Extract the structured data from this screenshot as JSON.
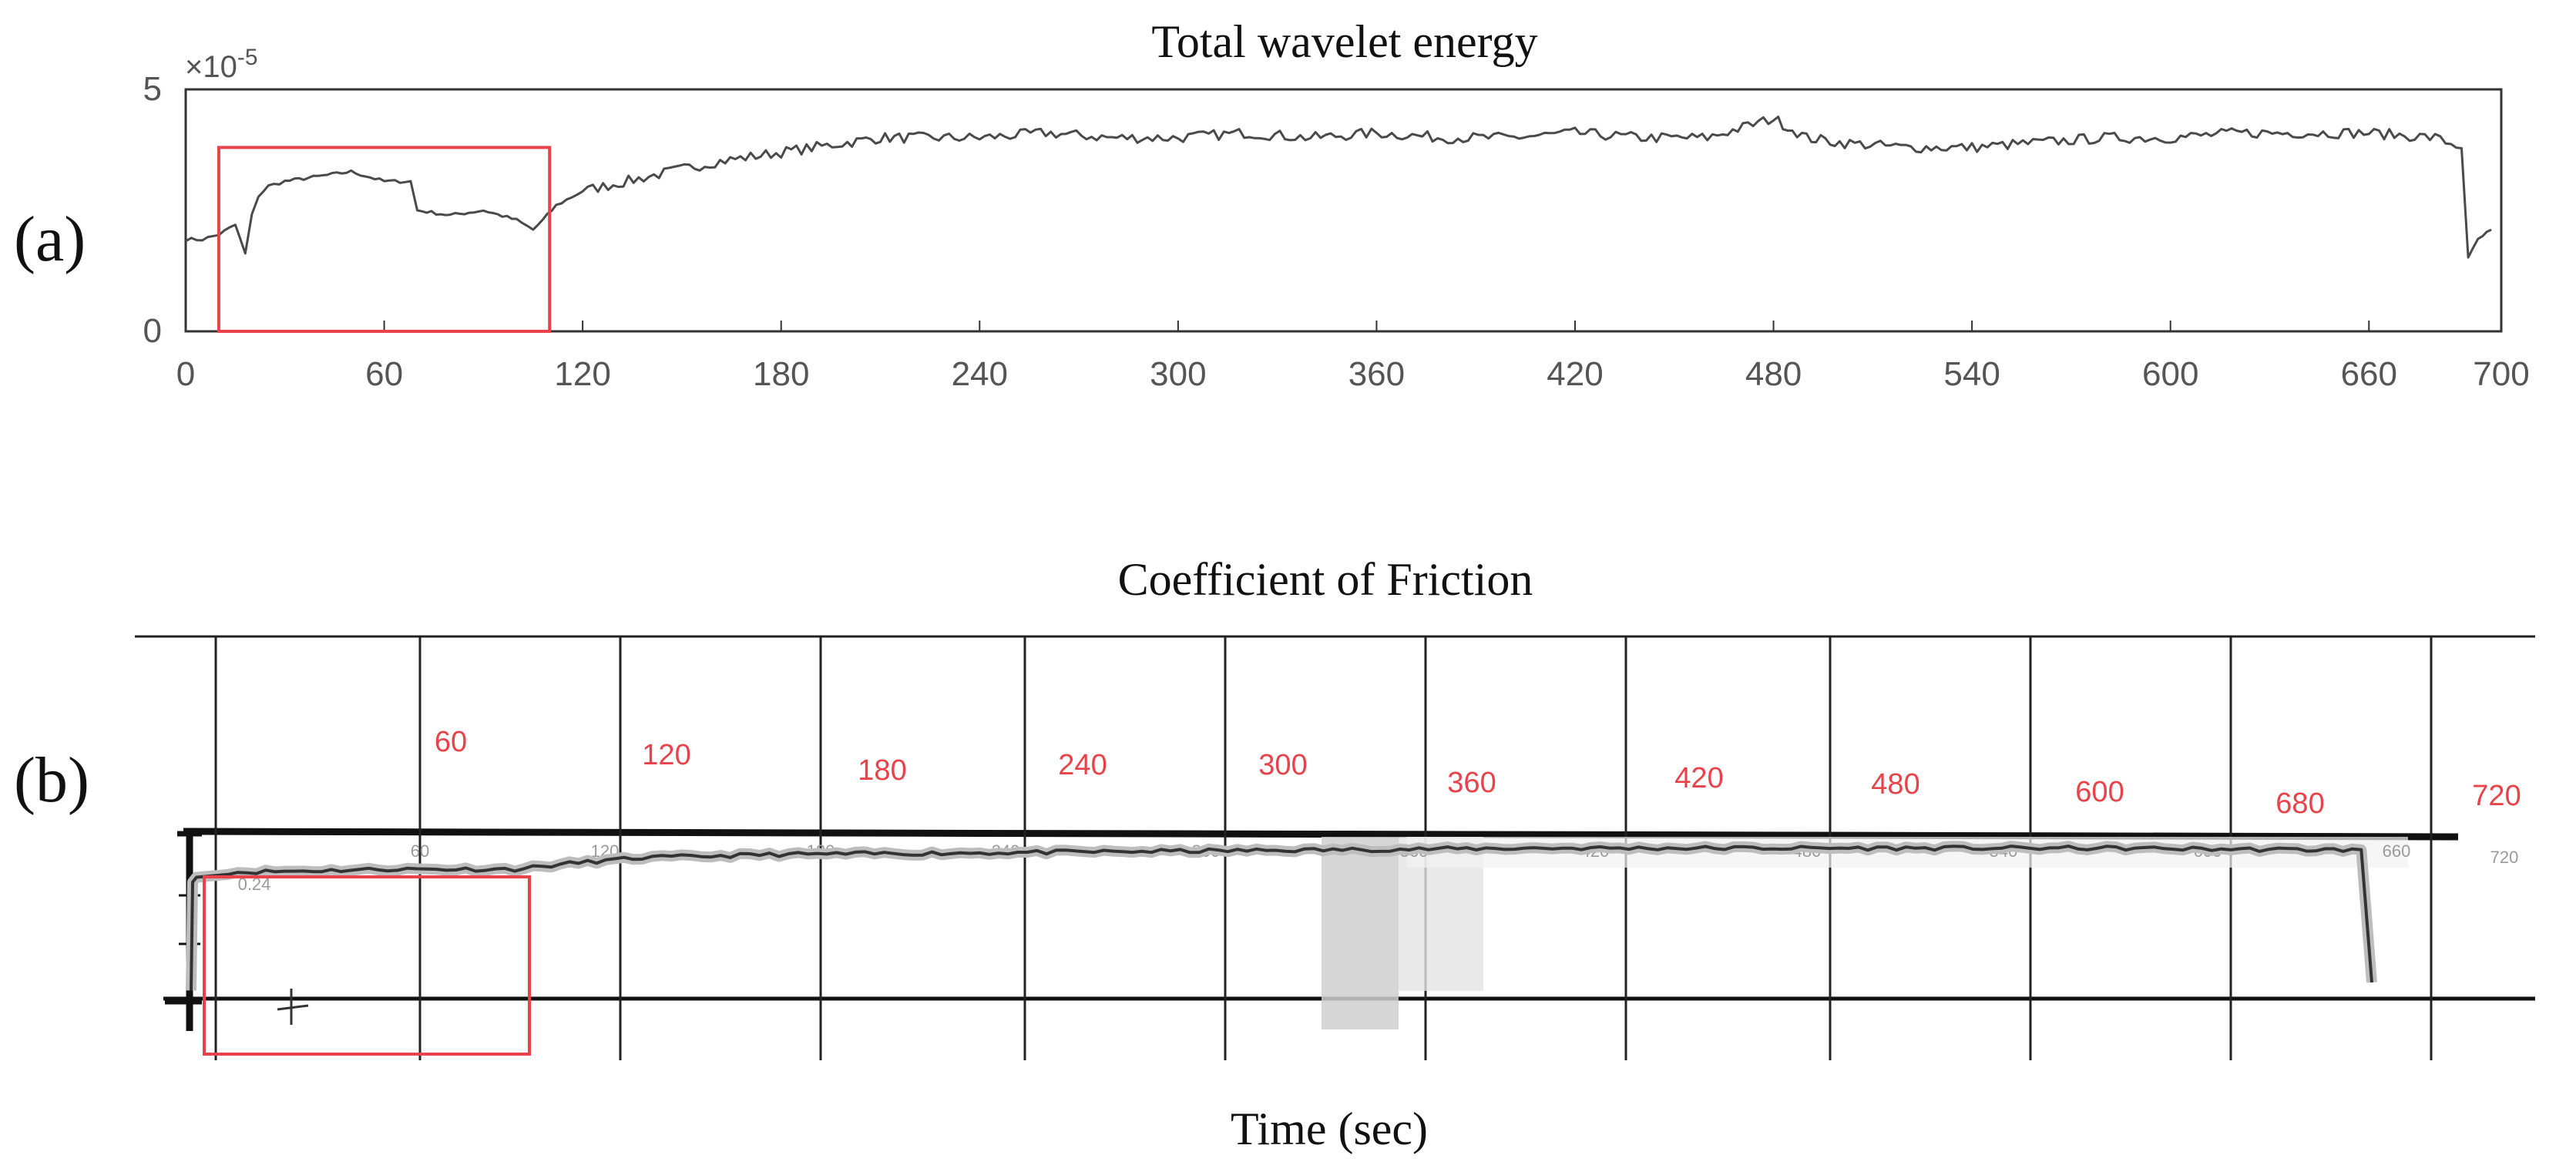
{
  "panel_a": {
    "label": "(a)",
    "multiplier_label": "×10",
    "multiplier_exp": "-5"
  },
  "panel_b": {
    "label": "(b)",
    "xlabel": "Time (sec)",
    "red_labels": [
      "60",
      "120",
      "180",
      "240",
      "300",
      "360",
      "420",
      "480",
      "600",
      "680",
      "720"
    ],
    "scan_labels": [
      "0.24",
      "60",
      "120",
      "180",
      "240",
      "300",
      "360",
      "420",
      "480",
      "540",
      "600",
      "660",
      "720"
    ]
  },
  "colors": {
    "trace": "#4a4a4a",
    "frame": "#333333",
    "highlight": "#e8434a",
    "grid_b": "#222222",
    "red_label": "#e8434a"
  },
  "chart_data": [
    {
      "type": "line",
      "title": "Total wavelet energy",
      "xlabel": "",
      "ylabel": "",
      "xlim": [
        0,
        700
      ],
      "ylim": [
        0,
        5
      ],
      "y_scale_note": "×10^-5",
      "xticks": [
        0,
        60,
        120,
        180,
        240,
        300,
        360,
        420,
        480,
        540,
        600,
        660,
        700
      ],
      "yticks": [
        0,
        5
      ],
      "highlight_box_x": [
        10,
        110
      ],
      "highlight_box_y": [
        0,
        3.8
      ],
      "series": [
        {
          "x": [
            0,
            5,
            10,
            15,
            18,
            20,
            22,
            25,
            30,
            40,
            50,
            60,
            68,
            70,
            80,
            90,
            100,
            105,
            108,
            112,
            120,
            140,
            160,
            180,
            200,
            210,
            220,
            240,
            260,
            280,
            300,
            320,
            340,
            360,
            380,
            400,
            420,
            440,
            460,
            480,
            490,
            500,
            520,
            540,
            560,
            580,
            600,
            620,
            640,
            660,
            680,
            688,
            690,
            693,
            697
          ],
          "values": [
            1.9,
            1.9,
            2.0,
            2.2,
            1.6,
            2.4,
            2.8,
            3.0,
            3.1,
            3.2,
            3.3,
            3.1,
            3.1,
            2.5,
            2.4,
            2.5,
            2.3,
            2.1,
            2.3,
            2.6,
            2.9,
            3.2,
            3.5,
            3.7,
            3.9,
            4.0,
            4.0,
            4.0,
            4.1,
            4.0,
            4.0,
            4.1,
            4.0,
            4.1,
            4.0,
            4.0,
            4.1,
            4.0,
            4.0,
            4.4,
            4.0,
            3.9,
            3.8,
            3.8,
            3.9,
            4.0,
            4.0,
            4.1,
            4.1,
            4.1,
            4.0,
            3.8,
            1.5,
            1.9,
            2.1
          ]
        }
      ]
    },
    {
      "type": "line",
      "title": "Coefficient of Friction",
      "xlabel": "Time (sec)",
      "xlim": [
        0,
        720
      ],
      "gridlines_x": [
        0,
        60,
        120,
        180,
        240,
        300,
        360,
        420,
        480,
        540,
        600,
        660,
        720
      ],
      "series": [
        {
          "x": [
            0,
            10,
            60,
            100,
            120,
            140,
            180,
            240,
            300,
            360,
            420,
            480,
            540,
            600,
            660,
            680,
            685
          ],
          "values": [
            0.75,
            0.78,
            0.8,
            0.8,
            0.84,
            0.87,
            0.89,
            0.9,
            0.91,
            0.92,
            0.93,
            0.93,
            0.93,
            0.93,
            0.92,
            0.92,
            0.1
          ]
        }
      ]
    }
  ]
}
